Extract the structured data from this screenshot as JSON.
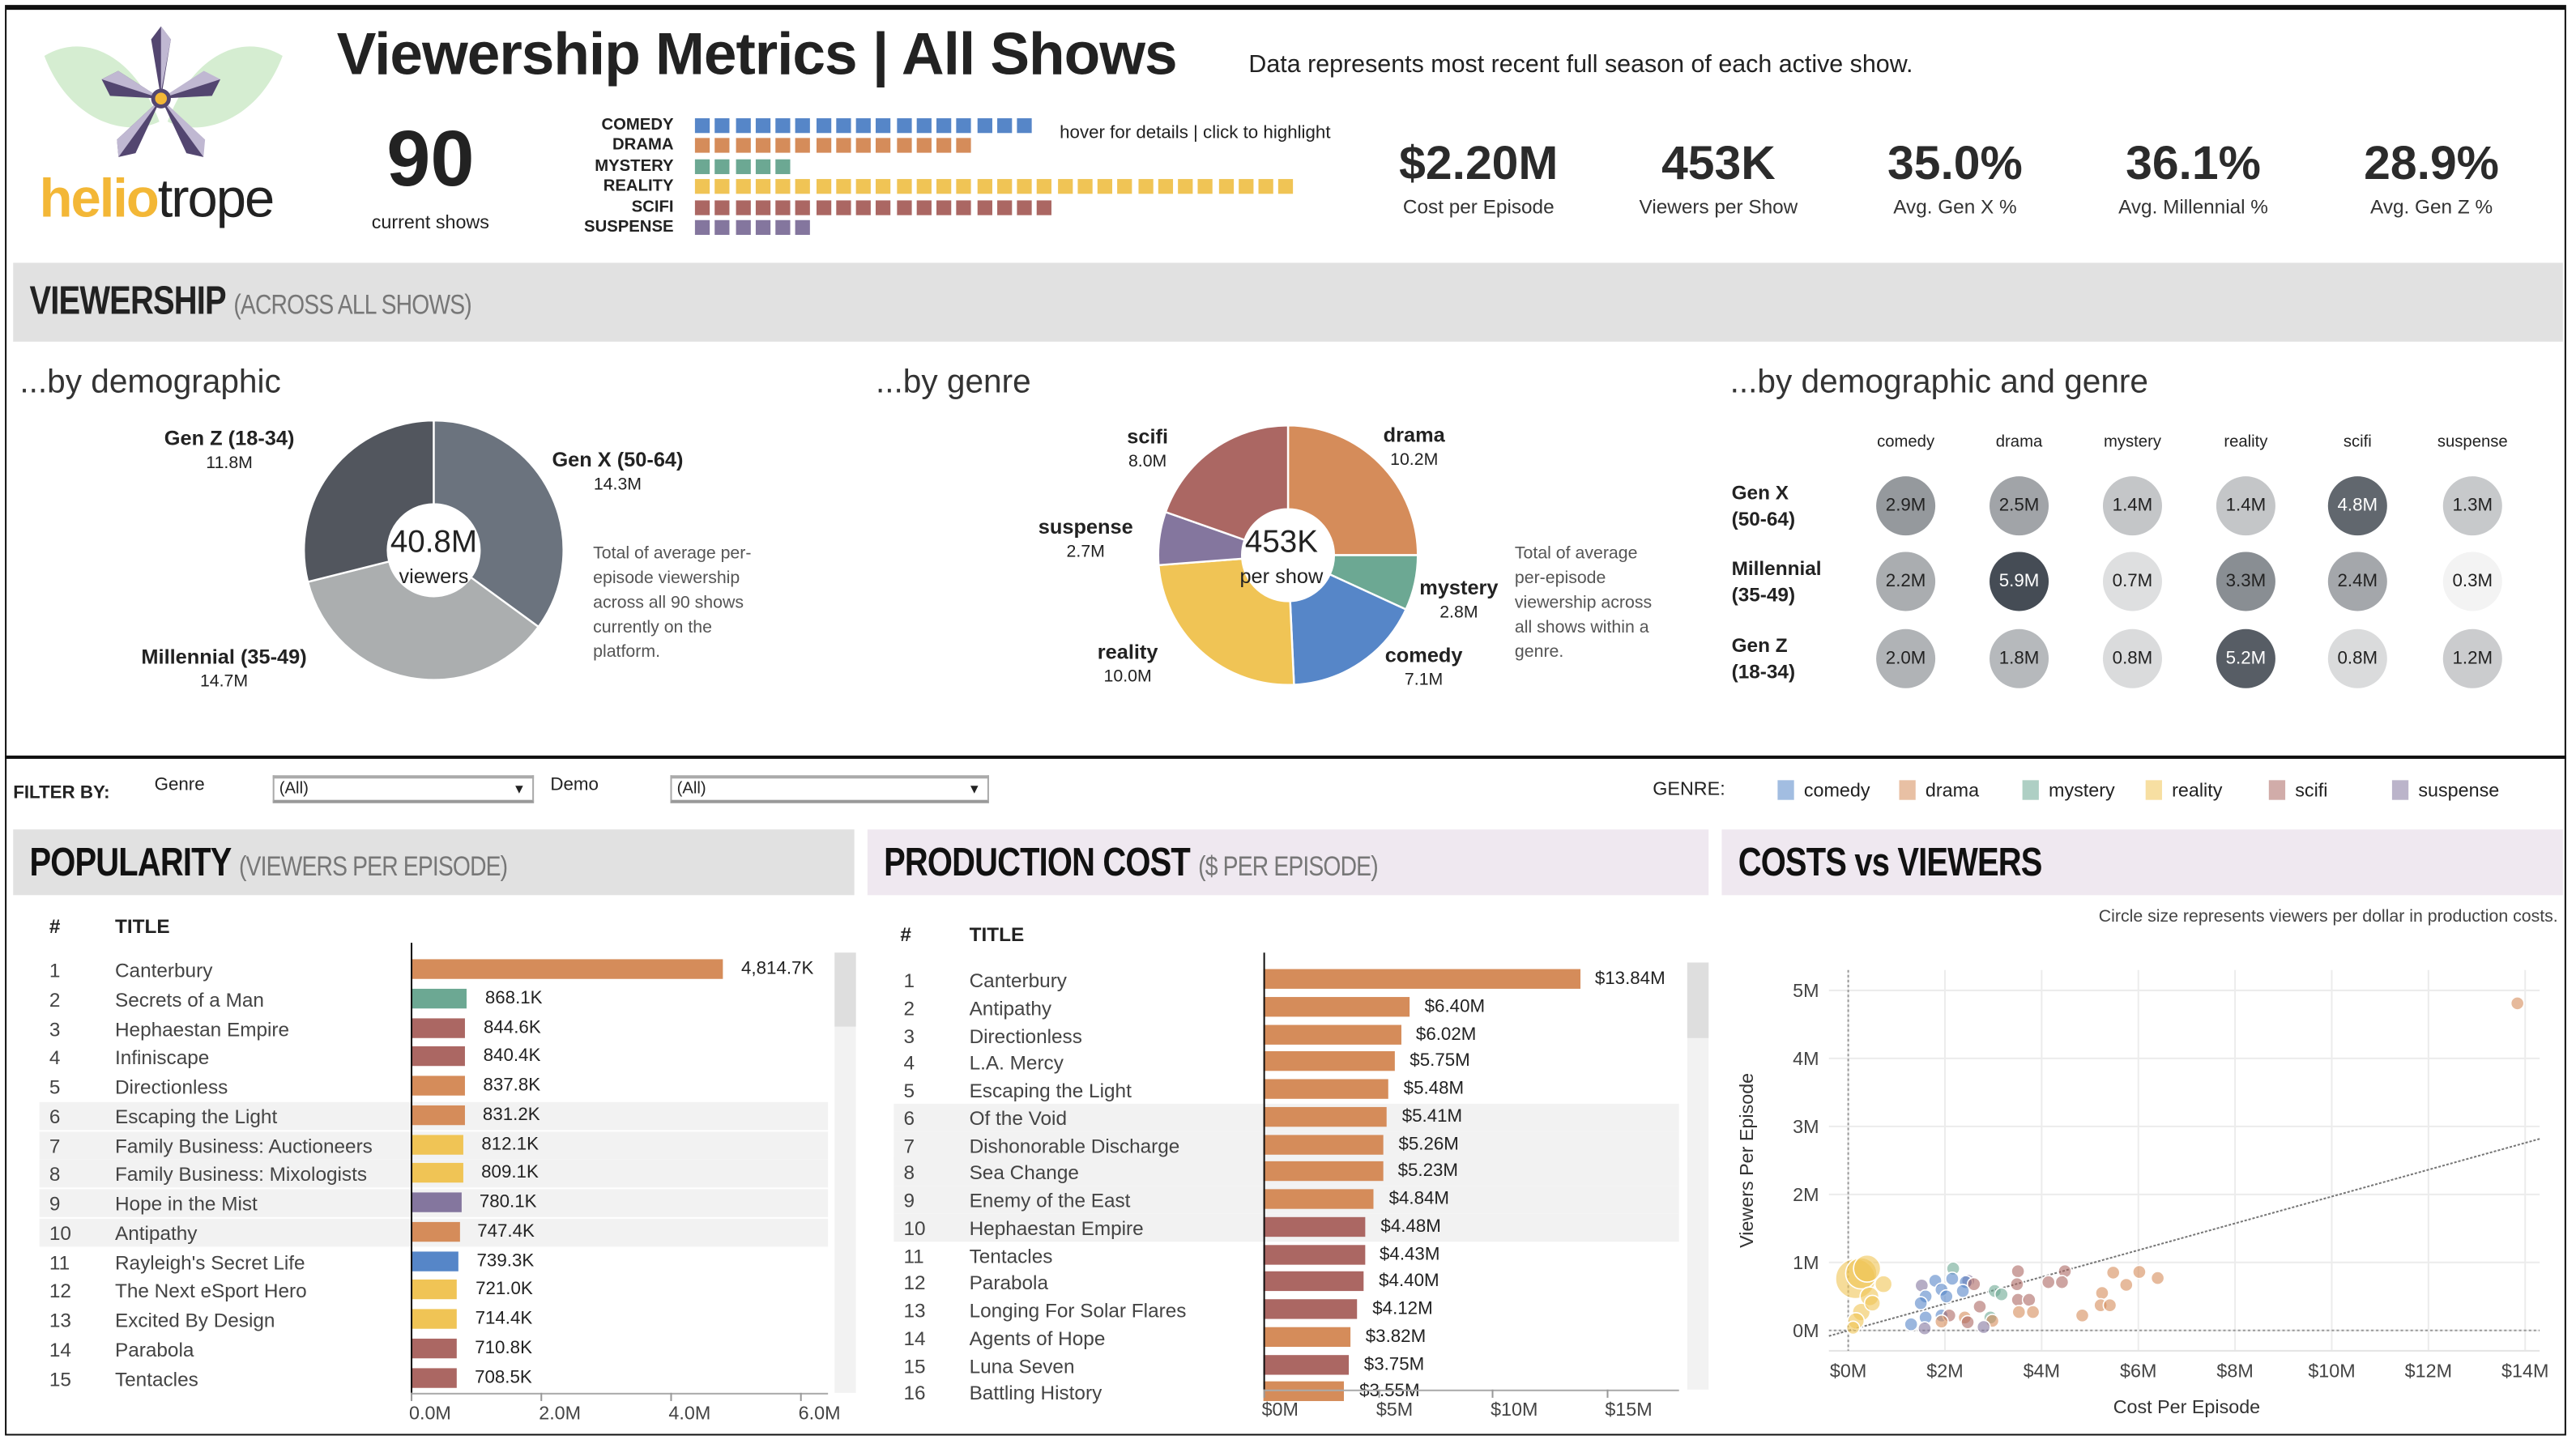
{
  "header": {
    "logo_text": "heliotrope",
    "title": "Viewership Metrics | All Shows",
    "subtitle": "Data represents most recent full season of each active show.",
    "show_count": "90",
    "show_count_label": "current shows",
    "hover_hint": "hover for details | click to highlight",
    "genre_counts": [
      {
        "label": "COMEDY",
        "genre": "comedy",
        "count": 17
      },
      {
        "label": "DRAMA",
        "genre": "drama",
        "count": 14
      },
      {
        "label": "MYSTERY",
        "genre": "mystery",
        "count": 5
      },
      {
        "label": "REALITY",
        "genre": "reality",
        "count": 30
      },
      {
        "label": "SCIFI",
        "genre": "scifi",
        "count": 18
      },
      {
        "label": "SUSPENSE",
        "genre": "suspense",
        "count": 6
      }
    ],
    "kpis": [
      {
        "value": "$2.20M",
        "label": "Cost per Episode"
      },
      {
        "value": "453K",
        "label": "Viewers per Show"
      },
      {
        "value": "35.0%",
        "label": "Avg. Gen X %"
      },
      {
        "value": "36.1%",
        "label": "Avg. Millennial %"
      },
      {
        "value": "28.9%",
        "label": "Avg. Gen Z %"
      }
    ]
  },
  "colors": {
    "comedy": "#5686c8",
    "drama": "#d58c5a",
    "mystery": "#6ca893",
    "reality": "#f0c455",
    "scifi": "#ab6763",
    "suspense": "#84769e",
    "band_gray": "#e1e1e1",
    "band_lilac": "#efe8f0"
  },
  "viewership": {
    "title": "VIEWERSHIP",
    "title_sub": "(ACROSS ALL SHOWS)",
    "by_demo": {
      "title": "...by demographic",
      "center_value": "40.8M",
      "center_label": "viewers",
      "note": "Total of average per-episode viewership across all 90 shows currently on the platform.",
      "segments": [
        {
          "name": "Gen X (50-64)",
          "value": 14.3,
          "label": "14.3M",
          "color": "#6b737e"
        },
        {
          "name": "Millennial (35-49)",
          "value": 14.7,
          "label": "14.7M",
          "color": "#abaeaf"
        },
        {
          "name": "Gen Z (18-34)",
          "value": 11.8,
          "label": "11.8M",
          "color": "#52565e"
        }
      ]
    },
    "by_genre": {
      "title": "...by genre",
      "center_value": "453K",
      "center_label": "per show",
      "note": "Total of average per-episode viewership across all shows within a genre.",
      "segments": [
        {
          "name": "drama",
          "value": 10.2,
          "label": "10.2M"
        },
        {
          "name": "mystery",
          "value": 2.8,
          "label": "2.8M"
        },
        {
          "name": "comedy",
          "value": 7.1,
          "label": "7.1M"
        },
        {
          "name": "reality",
          "value": 10.0,
          "label": "10.0M"
        },
        {
          "name": "suspense",
          "value": 2.7,
          "label": "2.7M"
        },
        {
          "name": "scifi",
          "value": 8.0,
          "label": "8.0M"
        }
      ]
    },
    "by_demo_genre": {
      "title": "...by demographic and genre",
      "columns": [
        "comedy",
        "drama",
        "mystery",
        "reality",
        "scifi",
        "suspense"
      ],
      "rows": [
        {
          "line1": "Gen X",
          "line2": "(50-64)",
          "values": [
            2.9,
            2.5,
            1.4,
            1.4,
            4.8,
            1.3
          ],
          "labels": [
            "2.9M",
            "2.5M",
            "1.4M",
            "1.4M",
            "4.8M",
            "1.3M"
          ]
        },
        {
          "line1": "Millennial",
          "line2": "(35-49)",
          "values": [
            2.2,
            5.9,
            0.7,
            3.3,
            2.4,
            0.3
          ],
          "labels": [
            "2.2M",
            "5.9M",
            "0.7M",
            "3.3M",
            "2.4M",
            "0.3M"
          ]
        },
        {
          "line1": "Gen Z",
          "line2": "(18-34)",
          "values": [
            2.0,
            1.8,
            0.8,
            5.2,
            0.8,
            1.2
          ],
          "labels": [
            "2.0M",
            "1.8M",
            "0.8M",
            "5.2M",
            "0.8M",
            "1.2M"
          ]
        }
      ]
    }
  },
  "filters": {
    "label": "FILTER BY:",
    "genre_label": "Genre",
    "genre_value": "(All)",
    "demo_label": "Demo",
    "demo_value": "(All)",
    "legend_label": "GENRE:",
    "legend": [
      "comedy",
      "drama",
      "mystery",
      "reality",
      "scifi",
      "suspense"
    ]
  },
  "popularity": {
    "title": "POPULARITY",
    "title_sub": "(VIEWERS PER EPISODE)",
    "col_rank": "#",
    "col_title": "TITLE",
    "axis_ticks": [
      {
        "v": 0,
        "label": "0.0M"
      },
      {
        "v": 2,
        "label": "2.0M"
      },
      {
        "v": 4,
        "label": "4.0M"
      },
      {
        "v": 6,
        "label": "6.0M"
      }
    ],
    "rows": [
      {
        "rank": "1",
        "title": "Canterbury",
        "value": 4.8147,
        "label": "4,814.7K",
        "genre": "drama"
      },
      {
        "rank": "2",
        "title": "Secrets of a Man",
        "value": 0.8681,
        "label": "868.1K",
        "genre": "mystery"
      },
      {
        "rank": "3",
        "title": "Hephaestan Empire",
        "value": 0.8446,
        "label": "844.6K",
        "genre": "scifi"
      },
      {
        "rank": "4",
        "title": "Infiniscape",
        "value": 0.8404,
        "label": "840.4K",
        "genre": "scifi"
      },
      {
        "rank": "5",
        "title": "Directionless",
        "value": 0.8378,
        "label": "837.8K",
        "genre": "drama"
      },
      {
        "rank": "6",
        "title": "Escaping the Light",
        "value": 0.8312,
        "label": "831.2K",
        "genre": "drama"
      },
      {
        "rank": "7",
        "title": "Family Business: Auctioneers",
        "value": 0.8121,
        "label": "812.1K",
        "genre": "reality"
      },
      {
        "rank": "8",
        "title": "Family Business: Mixologists",
        "value": 0.8091,
        "label": "809.1K",
        "genre": "reality"
      },
      {
        "rank": "9",
        "title": "Hope in the Mist",
        "value": 0.7801,
        "label": "780.1K",
        "genre": "suspense"
      },
      {
        "rank": "10",
        "title": "Antipathy",
        "value": 0.7474,
        "label": "747.4K",
        "genre": "drama"
      },
      {
        "rank": "11",
        "title": "Rayleigh's Secret Life",
        "value": 0.7393,
        "label": "739.3K",
        "genre": "comedy"
      },
      {
        "rank": "12",
        "title": "The Next eSport Hero",
        "value": 0.721,
        "label": "721.0K",
        "genre": "reality"
      },
      {
        "rank": "13",
        "title": "Excited By Design",
        "value": 0.7144,
        "label": "714.4K",
        "genre": "reality"
      },
      {
        "rank": "14",
        "title": "Parabola",
        "value": 0.7108,
        "label": "710.8K",
        "genre": "scifi"
      },
      {
        "rank": "15",
        "title": "Tentacles",
        "value": 0.7085,
        "label": "708.5K",
        "genre": "scifi"
      }
    ]
  },
  "production": {
    "title": "PRODUCTION COST",
    "title_sub": "($ PER EPISODE)",
    "col_rank": "#",
    "col_title": "TITLE",
    "axis_ticks": [
      {
        "v": 0,
        "label": "$0M"
      },
      {
        "v": 5,
        "label": "$5M"
      },
      {
        "v": 10,
        "label": "$10M"
      },
      {
        "v": 15,
        "label": "$15M"
      }
    ],
    "rows": [
      {
        "rank": "1",
        "title": "Canterbury",
        "value": 13.84,
        "label": "$13.84M",
        "genre": "drama"
      },
      {
        "rank": "2",
        "title": "Antipathy",
        "value": 6.4,
        "label": "$6.40M",
        "genre": "drama"
      },
      {
        "rank": "3",
        "title": "Directionless",
        "value": 6.02,
        "label": "$6.02M",
        "genre": "drama"
      },
      {
        "rank": "4",
        "title": "L.A. Mercy",
        "value": 5.75,
        "label": "$5.75M",
        "genre": "drama"
      },
      {
        "rank": "5",
        "title": "Escaping the Light",
        "value": 5.48,
        "label": "$5.48M",
        "genre": "drama"
      },
      {
        "rank": "6",
        "title": "Of the Void",
        "value": 5.41,
        "label": "$5.41M",
        "genre": "drama"
      },
      {
        "rank": "7",
        "title": "Dishonorable Discharge",
        "value": 5.26,
        "label": "$5.26M",
        "genre": "drama"
      },
      {
        "rank": "8",
        "title": "Sea Change",
        "value": 5.23,
        "label": "$5.23M",
        "genre": "drama"
      },
      {
        "rank": "9",
        "title": "Enemy of the East",
        "value": 4.84,
        "label": "$4.84M",
        "genre": "drama"
      },
      {
        "rank": "10",
        "title": "Hephaestan Empire",
        "value": 4.48,
        "label": "$4.48M",
        "genre": "scifi"
      },
      {
        "rank": "11",
        "title": "Tentacles",
        "value": 4.43,
        "label": "$4.43M",
        "genre": "scifi"
      },
      {
        "rank": "12",
        "title": "Parabola",
        "value": 4.4,
        "label": "$4.40M",
        "genre": "scifi"
      },
      {
        "rank": "13",
        "title": "Longing For Solar Flares",
        "value": 4.12,
        "label": "$4.12M",
        "genre": "scifi"
      },
      {
        "rank": "14",
        "title": "Agents of Hope",
        "value": 3.82,
        "label": "$3.82M",
        "genre": "drama"
      },
      {
        "rank": "15",
        "title": "Luna Seven",
        "value": 3.75,
        "label": "$3.75M",
        "genre": "scifi"
      },
      {
        "rank": "16",
        "title": "Battling History",
        "value": 3.55,
        "label": "$3.55M",
        "genre": "drama"
      }
    ]
  },
  "costs_vs_viewers": {
    "title": "COSTS vs VIEWERS",
    "note": "Circle size represents viewers per dollar in production costs."
  },
  "chart_data": {
    "type": "scatter",
    "xlabel": "Cost Per Episode",
    "ylabel": "Viewers Per Episode",
    "xlim": [
      -0.4,
      14.2
    ],
    "ylim": [
      -0.3,
      5.3
    ],
    "x_ticks": [
      {
        "v": 0,
        "label": "$0M"
      },
      {
        "v": 2,
        "label": "$2M"
      },
      {
        "v": 4,
        "label": "$4M"
      },
      {
        "v": 6,
        "label": "$6M"
      },
      {
        "v": 8,
        "label": "$8M"
      },
      {
        "v": 10,
        "label": "$10M"
      },
      {
        "v": 12,
        "label": "$12M"
      },
      {
        "v": 14,
        "label": "$14M"
      }
    ],
    "y_ticks": [
      {
        "v": 0,
        "label": "0M"
      },
      {
        "v": 1,
        "label": "1M"
      },
      {
        "v": 2,
        "label": "2M"
      },
      {
        "v": 3,
        "label": "3M"
      },
      {
        "v": 4,
        "label": "4M"
      },
      {
        "v": 5,
        "label": "5M"
      }
    ],
    "grid": true,
    "trend_line": "linear",
    "points": [
      {
        "x": 0.27,
        "y": 0.84,
        "genre": "reality"
      },
      {
        "x": 0.39,
        "y": 0.91,
        "genre": "reality"
      },
      {
        "x": 0.73,
        "y": 0.68,
        "genre": "reality"
      },
      {
        "x": 0.44,
        "y": 0.5,
        "genre": "reality"
      },
      {
        "x": 0.5,
        "y": 0.4,
        "genre": "reality"
      },
      {
        "x": 0.27,
        "y": 0.27,
        "genre": "reality"
      },
      {
        "x": 0.16,
        "y": 0.14,
        "genre": "reality"
      },
      {
        "x": 0.1,
        "y": 0.04,
        "genre": "reality"
      },
      {
        "x": 0.15,
        "y": 0.76,
        "genre": "reality"
      },
      {
        "x": 1.8,
        "y": 0.73,
        "genre": "comedy"
      },
      {
        "x": 2.15,
        "y": 0.76,
        "genre": "comedy"
      },
      {
        "x": 1.93,
        "y": 0.6,
        "genre": "comedy"
      },
      {
        "x": 2.37,
        "y": 0.58,
        "genre": "comedy"
      },
      {
        "x": 1.6,
        "y": 0.5,
        "genre": "comedy"
      },
      {
        "x": 1.5,
        "y": 0.4,
        "genre": "comedy"
      },
      {
        "x": 1.93,
        "y": 0.22,
        "genre": "comedy"
      },
      {
        "x": 1.6,
        "y": 0.19,
        "genre": "comedy"
      },
      {
        "x": 1.3,
        "y": 0.09,
        "genre": "comedy"
      },
      {
        "x": 2.03,
        "y": 0.5,
        "genre": "comedy"
      },
      {
        "x": 2.43,
        "y": 0.71,
        "genre": "comedy"
      },
      {
        "x": 2.17,
        "y": 0.91,
        "genre": "mystery"
      },
      {
        "x": 3.03,
        "y": 0.58,
        "genre": "mystery"
      },
      {
        "x": 3.17,
        "y": 0.53,
        "genre": "mystery"
      },
      {
        "x": 2.94,
        "y": 0.19,
        "genre": "mystery"
      },
      {
        "x": 3.51,
        "y": 0.87,
        "genre": "scifi"
      },
      {
        "x": 4.48,
        "y": 0.87,
        "genre": "scifi"
      },
      {
        "x": 3.49,
        "y": 0.68,
        "genre": "scifi"
      },
      {
        "x": 4.14,
        "y": 0.71,
        "genre": "scifi"
      },
      {
        "x": 4.42,
        "y": 0.71,
        "genre": "scifi"
      },
      {
        "x": 3.51,
        "y": 0.45,
        "genre": "scifi"
      },
      {
        "x": 3.74,
        "y": 0.45,
        "genre": "scifi"
      },
      {
        "x": 2.72,
        "y": 0.35,
        "genre": "scifi"
      },
      {
        "x": 2.6,
        "y": 0.68,
        "genre": "scifi"
      },
      {
        "x": 2.09,
        "y": 0.22,
        "genre": "scifi"
      },
      {
        "x": 2.47,
        "y": 0.12,
        "genre": "scifi"
      },
      {
        "x": 5.48,
        "y": 0.85,
        "genre": "drama"
      },
      {
        "x": 6.02,
        "y": 0.86,
        "genre": "drama"
      },
      {
        "x": 6.4,
        "y": 0.77,
        "genre": "drama"
      },
      {
        "x": 5.75,
        "y": 0.67,
        "genre": "drama"
      },
      {
        "x": 5.25,
        "y": 0.55,
        "genre": "drama"
      },
      {
        "x": 5.22,
        "y": 0.37,
        "genre": "drama"
      },
      {
        "x": 5.41,
        "y": 0.37,
        "genre": "drama"
      },
      {
        "x": 4.84,
        "y": 0.22,
        "genre": "drama"
      },
      {
        "x": 3.53,
        "y": 0.27,
        "genre": "drama"
      },
      {
        "x": 3.82,
        "y": 0.27,
        "genre": "drama"
      },
      {
        "x": 2.41,
        "y": 0.19,
        "genre": "drama"
      },
      {
        "x": 1.93,
        "y": 0.13,
        "genre": "drama"
      },
      {
        "x": 2.98,
        "y": 0.14,
        "genre": "drama"
      },
      {
        "x": 13.84,
        "y": 4.81,
        "genre": "drama"
      },
      {
        "x": 1.52,
        "y": 0.66,
        "genre": "suspense"
      },
      {
        "x": 2.48,
        "y": 0.73,
        "genre": "suspense"
      },
      {
        "x": 2.8,
        "y": 0.05,
        "genre": "suspense"
      },
      {
        "x": 1.58,
        "y": 0.03,
        "genre": "suspense"
      }
    ]
  }
}
